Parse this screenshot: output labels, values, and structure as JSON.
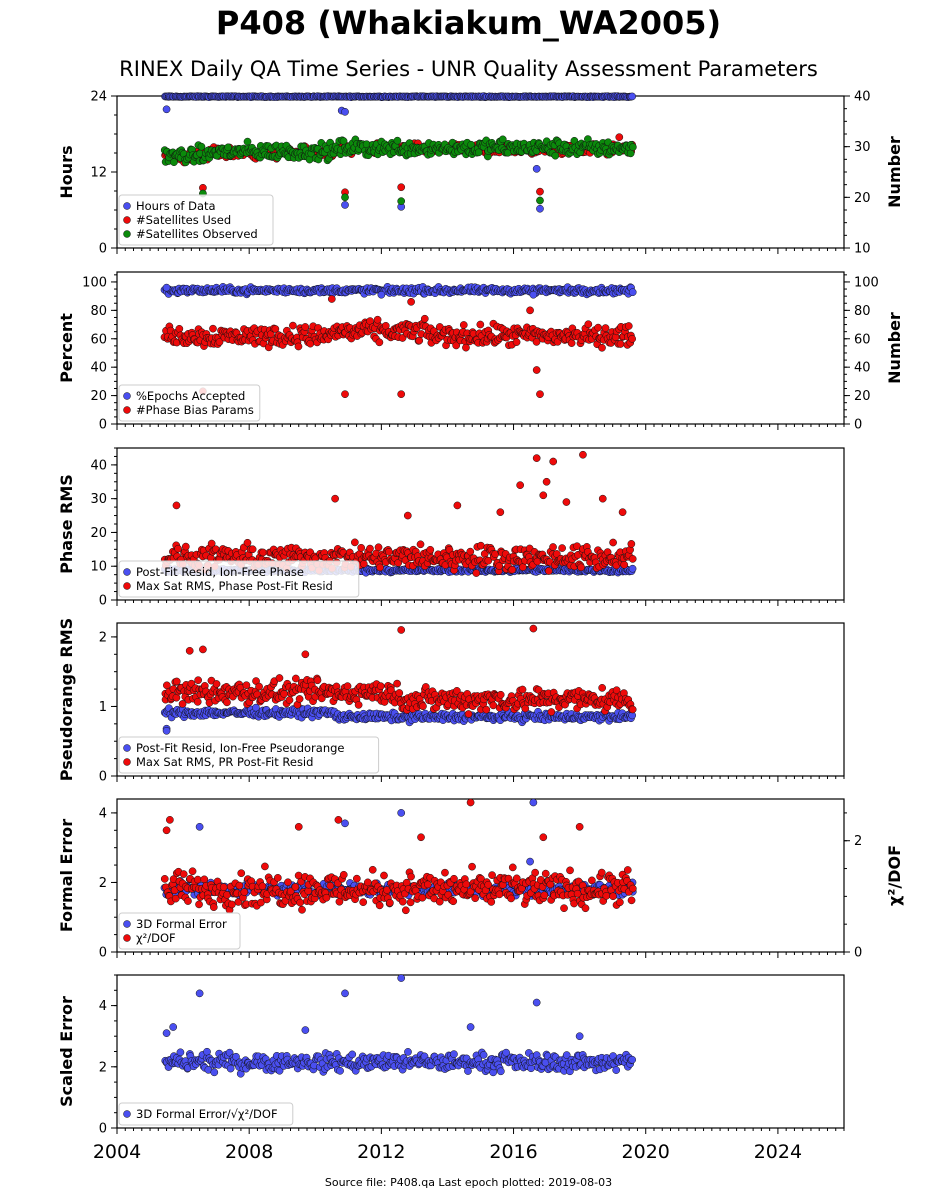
{
  "title": "P408 (Whakiakum_WA2005)",
  "subtitle": "RINEX Daily QA Time Series - UNR Quality Assessment Parameters",
  "footer": "Source file: P408.qa Last epoch plotted: 2019-08-03",
  "colors": {
    "blue": "#4a4ff0",
    "red": "#ee0a0a",
    "green": "#0b8a0b",
    "navy": "#1a1f4a"
  },
  "chart_data": [
    {
      "type": "scatter",
      "ylabel": "Hours",
      "y2label": "Number",
      "xlim": [
        2004,
        2026
      ],
      "ylim": [
        0,
        24
      ],
      "y2lim": [
        10,
        40
      ],
      "yticks": [
        0,
        12,
        24
      ],
      "y2ticks": [
        10,
        20,
        30,
        40
      ],
      "legend_position": "lower-left",
      "series": [
        {
          "name": "Hours of Data",
          "color": "blue",
          "axis": "left",
          "base": 23.9,
          "spread": 0.05,
          "points": [
            [
              2005.5,
              21.9
            ],
            [
              2010.8,
              21.7
            ],
            [
              2010.9,
              21.5
            ],
            [
              2010.9,
              6.8
            ],
            [
              2012.6,
              6.5
            ],
            [
              2016.7,
              12.5
            ],
            [
              2016.8,
              6.2
            ]
          ]
        },
        {
          "name": "#Satellites Used",
          "color": "red",
          "axis": "left",
          "base": 15.0,
          "spread": 0.6,
          "points": [
            [
              2006.6,
              9.5
            ],
            [
              2010.9,
              8.8
            ],
            [
              2012.6,
              9.6
            ],
            [
              2016.8,
              8.9
            ],
            [
              2019.2,
              17.5
            ],
            [
              2009.7,
              16.0
            ],
            [
              2016.7,
              15.5
            ]
          ]
        },
        {
          "name": "#Satellites Observed",
          "color": "green",
          "axis": "left",
          "base": 15.2,
          "spread": 0.9,
          "points": [
            [
              2006.6,
              8.6
            ],
            [
              2010.9,
              8.0
            ],
            [
              2012.6,
              7.4
            ],
            [
              2016.8,
              7.5
            ]
          ]
        }
      ]
    },
    {
      "type": "scatter",
      "ylabel": "Percent",
      "y2label": "Number",
      "xlim": [
        2004,
        2026
      ],
      "ylim": [
        0,
        107
      ],
      "y2lim": [
        0,
        107
      ],
      "yticks": [
        0,
        20,
        40,
        60,
        80,
        100
      ],
      "y2ticks": [
        0,
        20,
        40,
        60,
        80,
        100
      ],
      "legend_position": "lower-left",
      "series": [
        {
          "name": "%Epochs Accepted",
          "color": "blue",
          "axis": "left",
          "base": 94,
          "spread": 1.5,
          "points": [
            [
              2005.5,
              96
            ],
            [
              2012.0,
              91
            ],
            [
              2016.6,
              91
            ]
          ]
        },
        {
          "name": "#Phase Bias Params",
          "color": "red",
          "axis": "left",
          "base": 62,
          "spread": 5,
          "points": [
            [
              2006.6,
              23
            ],
            [
              2010.9,
              21
            ],
            [
              2012.6,
              21
            ],
            [
              2016.7,
              38
            ],
            [
              2016.8,
              21
            ],
            [
              2010.5,
              88
            ],
            [
              2012.9,
              86
            ],
            [
              2016.5,
              80
            ]
          ]
        }
      ]
    },
    {
      "type": "scatter",
      "ylabel": "Phase RMS",
      "xlim": [
        2004,
        2026
      ],
      "ylim": [
        0,
        45
      ],
      "yticks": [
        0,
        10,
        20,
        30,
        40
      ],
      "legend_position": "lower-left",
      "series": [
        {
          "name": "Post-Fit Resid, Ion-Free Phase",
          "color": "blue",
          "axis": "left",
          "base": 8.8,
          "spread": 0.4,
          "points": []
        },
        {
          "name": "Max Sat RMS, Phase Post-Fit Resid",
          "color": "red",
          "axis": "left",
          "base": 12.5,
          "spread": 2.5,
          "points": [
            [
              2005.8,
              28
            ],
            [
              2010.6,
              30
            ],
            [
              2012.8,
              25
            ],
            [
              2014.3,
              28
            ],
            [
              2015.6,
              26
            ],
            [
              2016.2,
              34
            ],
            [
              2016.7,
              42
            ],
            [
              2017.2,
              41
            ],
            [
              2017.0,
              35
            ],
            [
              2017.6,
              29
            ],
            [
              2018.1,
              43
            ],
            [
              2018.7,
              30
            ],
            [
              2019.3,
              26
            ],
            [
              2016.9,
              31
            ]
          ]
        }
      ]
    },
    {
      "type": "scatter",
      "ylabel": "Pseudorange RMS",
      "xlim": [
        2004,
        2026
      ],
      "ylim": [
        0,
        2.2
      ],
      "yticks": [
        0,
        1,
        2
      ],
      "legend_position": "lower-left",
      "series": [
        {
          "name": "Post-Fit Resid, Ion-Free Pseudorange",
          "color": "blue",
          "axis": "left",
          "base": 0.91,
          "spread": 0.04,
          "points": [
            [
              2005.5,
              0.68
            ],
            [
              2005.5,
              0.65
            ]
          ]
        },
        {
          "name": "Max Sat RMS, PR Post-Fit Resid",
          "color": "red",
          "axis": "left",
          "base": 1.2,
          "spread": 0.12,
          "points": [
            [
              2006.2,
              1.8
            ],
            [
              2006.6,
              1.82
            ],
            [
              2012.6,
              2.1
            ],
            [
              2016.6,
              2.12
            ],
            [
              2009.7,
              1.75
            ]
          ]
        }
      ]
    },
    {
      "type": "scatter",
      "ylabel": "Formal Error",
      "y2label": "χ²/DOF",
      "xlim": [
        2004,
        2026
      ],
      "ylim": [
        0,
        4.4
      ],
      "y2lim": [
        0,
        2.75
      ],
      "yticks": [
        0,
        2,
        4
      ],
      "y2ticks": [
        0,
        2
      ],
      "legend_position": "lower-left",
      "series": [
        {
          "name": "3D Formal Error",
          "color": "blue",
          "axis": "left",
          "base": 1.8,
          "spread": 0.12,
          "points": [
            [
              2006.5,
              3.6
            ],
            [
              2010.9,
              3.7
            ],
            [
              2012.6,
              4.0
            ],
            [
              2016.6,
              4.3
            ],
            [
              2016.5,
              2.6
            ],
            [
              2019.6,
              2.0
            ]
          ]
        },
        {
          "name": "χ²/DOF",
          "color": "red",
          "axis": "left",
          "base": 1.8,
          "spread": 0.35,
          "points": [
            [
              2005.6,
              3.8
            ],
            [
              2005.5,
              3.5
            ],
            [
              2010.7,
              3.8
            ],
            [
              2014.7,
              4.3
            ],
            [
              2018.0,
              3.6
            ],
            [
              2013.2,
              3.3
            ],
            [
              2016.9,
              3.3
            ],
            [
              2009.5,
              3.6
            ]
          ]
        }
      ]
    },
    {
      "type": "scatter",
      "ylabel": "Scaled Error",
      "xlabel": "",
      "xlim": [
        2004,
        2026
      ],
      "ylim": [
        0,
        5
      ],
      "yticks": [
        0,
        2,
        4
      ],
      "xticks": [
        2004,
        2008,
        2012,
        2016,
        2020,
        2024
      ],
      "legend_position": "lower-left",
      "series": [
        {
          "name": "3D Formal Error/√χ²/DOF",
          "color": "blue",
          "axis": "left",
          "base": 2.15,
          "spread": 0.2,
          "points": [
            [
              2006.5,
              4.4
            ],
            [
              2010.9,
              4.4
            ],
            [
              2012.6,
              4.9
            ],
            [
              2016.7,
              4.1
            ],
            [
              2005.7,
              3.3
            ],
            [
              2005.5,
              3.1
            ],
            [
              2009.7,
              3.2
            ],
            [
              2014.7,
              3.3
            ],
            [
              2018.0,
              3.0
            ]
          ]
        }
      ]
    }
  ]
}
